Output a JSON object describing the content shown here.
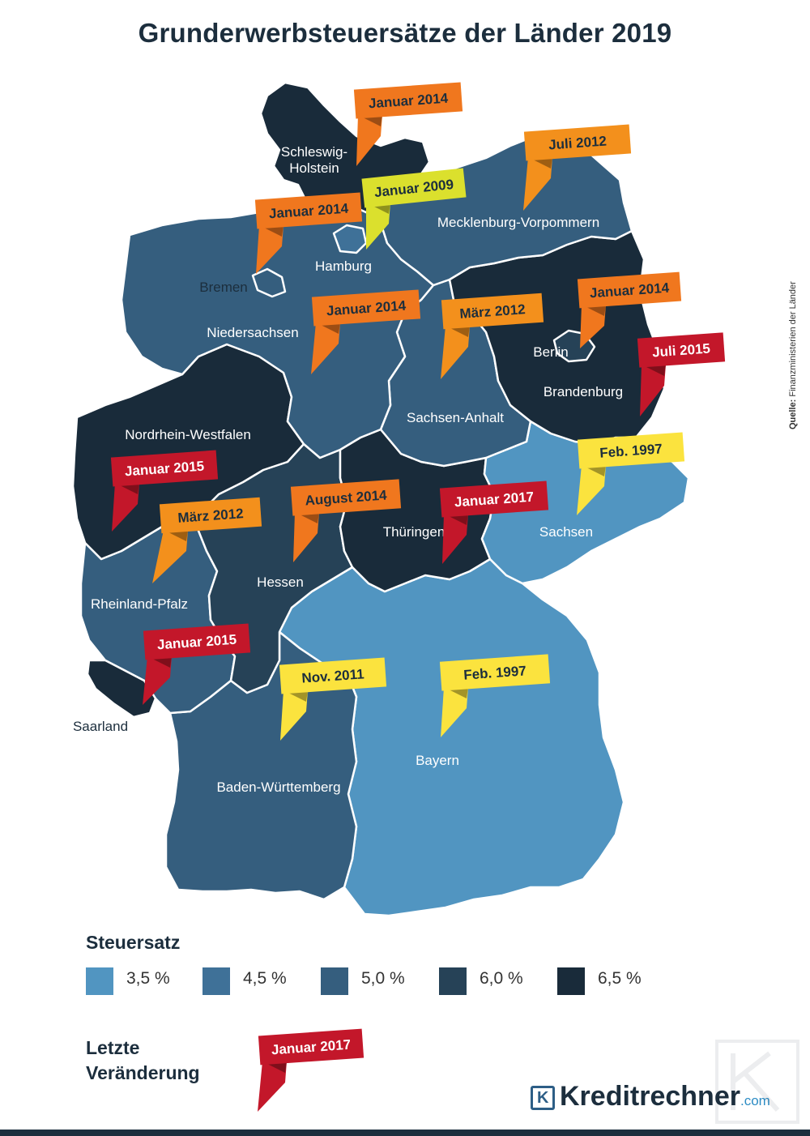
{
  "title": "Grunderwerbsteuersätze der Länder 2019",
  "source": {
    "label": "Quelle:",
    "text": "Finanzministerien der Länder"
  },
  "legend": {
    "title": "Steuersatz",
    "items": [
      {
        "label": "3,5 %",
        "color": "#5195c1"
      },
      {
        "label": "4,5 %",
        "color": "#3f7198"
      },
      {
        "label": "5,0 %",
        "color": "#355e7e"
      },
      {
        "label": "6,0 %",
        "color": "#264257"
      },
      {
        "label": "6,5 %",
        "color": "#192b3a"
      }
    ]
  },
  "change_legend": {
    "title_line1": "Letzte",
    "title_line2": "Veränderung",
    "example_flag": "Januar 2017"
  },
  "flag_colors": {
    "red": "#c3172a",
    "orange": "#f0771e",
    "amber": "#f3901c",
    "yellow": "#fbe33e",
    "lime": "#dbe02d"
  },
  "states": [
    {
      "name": "Schleswig-Holstein",
      "label_line1": "Schleswig-",
      "label_line2": "Holstein",
      "rate": "6,5 %",
      "last_change": "Januar 2014",
      "flag_color": "orange"
    },
    {
      "name": "Mecklenburg-Vorpommern",
      "label_line1": "Mecklenburg-Vorpommern",
      "rate": "5,0 %",
      "last_change": "Juli 2012",
      "flag_color": "amber"
    },
    {
      "name": "Hamburg",
      "label_line1": "Hamburg",
      "rate": "4,5 %",
      "last_change": "Januar 2009",
      "flag_color": "lime"
    },
    {
      "name": "Bremen",
      "label_line1": "Bremen",
      "rate": "5,0 %",
      "last_change": "Januar 2014",
      "flag_color": "orange"
    },
    {
      "name": "Niedersachsen",
      "label_line1": "Niedersachsen",
      "rate": "5,0 %",
      "last_change": "Januar 2014",
      "flag_color": "orange"
    },
    {
      "name": "Berlin",
      "label_line1": "Berlin",
      "rate": "6,0 %",
      "last_change": "Januar 2014",
      "flag_color": "orange"
    },
    {
      "name": "Brandenburg",
      "label_line1": "Brandenburg",
      "rate": "6,5 %",
      "last_change": "Juli 2015",
      "flag_color": "red"
    },
    {
      "name": "Sachsen-Anhalt",
      "label_line1": "Sachsen-Anhalt",
      "rate": "5,0 %",
      "last_change": "März 2012",
      "flag_color": "amber"
    },
    {
      "name": "Nordrhein-Westfalen",
      "label_line1": "Nordrhein-Westfalen",
      "rate": "6,5 %",
      "last_change": "Januar 2015",
      "flag_color": "red"
    },
    {
      "name": "Sachsen",
      "label_line1": "Sachsen",
      "rate": "3,5 %",
      "last_change": "Feb. 1997",
      "flag_color": "yellow"
    },
    {
      "name": "Thüringen",
      "label_line1": "Thüringen",
      "rate": "6,5 %",
      "last_change": "Januar 2017",
      "flag_color": "red"
    },
    {
      "name": "Hessen",
      "label_line1": "Hessen",
      "rate": "6,0 %",
      "last_change": "August 2014",
      "flag_color": "orange"
    },
    {
      "name": "Rheinland-Pfalz",
      "label_line1": "Rheinland-Pfalz",
      "rate": "5,0 %",
      "last_change": "März 2012",
      "flag_color": "amber"
    },
    {
      "name": "Saarland",
      "label_line1": "Saarland",
      "rate": "6,5 %",
      "last_change": "Januar 2015",
      "flag_color": "red"
    },
    {
      "name": "Baden-Württemberg",
      "label_line1": "Baden-Württemberg",
      "rate": "5,0 %",
      "last_change": "Nov. 2011",
      "flag_color": "yellow"
    },
    {
      "name": "Bayern",
      "label_line1": "Bayern",
      "rate": "3,5 %",
      "last_change": "Feb. 1997",
      "flag_color": "yellow"
    }
  ],
  "brand": {
    "icon": "kreditrechner-logo-icon",
    "icon_letter": "K",
    "name": "Kreditrechner",
    "tld": ".com"
  }
}
